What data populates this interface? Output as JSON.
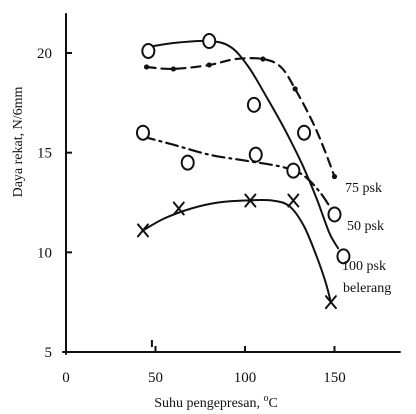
{
  "chart_data": {
    "type": "line",
    "title": "",
    "xlabel": "Suhu pengepresan, °C",
    "xlabel_base": "Suhu pengepresan, ",
    "xlabel_unit_sup": "o",
    "xlabel_unit": "C",
    "ylabel": "Daya rekat, N/6mm",
    "xlim": [
      0,
      190
    ],
    "ylim": [
      5,
      22
    ],
    "xticks": [
      0,
      50,
      100,
      150
    ],
    "yticks": [
      5,
      10,
      15,
      20
    ],
    "series": [
      {
        "name": "75 psk",
        "line_style": "dashed",
        "marker": "dot",
        "points": [
          [
            45,
            19.3
          ],
          [
            60,
            19.2
          ],
          [
            80,
            19.4
          ],
          [
            110,
            19.7
          ],
          [
            128,
            18.2
          ],
          [
            150,
            13.8
          ]
        ],
        "curve": [
          [
            45,
            19.3
          ],
          [
            60,
            19.2
          ],
          [
            80,
            19.4
          ],
          [
            95,
            19.7
          ],
          [
            110,
            19.7
          ],
          [
            120,
            19.3
          ],
          [
            128,
            18.2
          ],
          [
            138,
            16.5
          ],
          [
            145,
            15
          ],
          [
            150,
            13.8
          ]
        ]
      },
      {
        "name": "50 psk",
        "line_style": "dash-dot",
        "marker": "circle",
        "points": [
          [
            43,
            16
          ],
          [
            68,
            14.5
          ],
          [
            106,
            14.9
          ],
          [
            127,
            14.1
          ],
          [
            150,
            11.9
          ]
        ],
        "curve": [
          [
            43,
            15.8
          ],
          [
            60,
            15.4
          ],
          [
            80,
            14.9
          ],
          [
            100,
            14.6
          ],
          [
            120,
            14.3
          ],
          [
            132,
            13.9
          ],
          [
            142,
            13
          ],
          [
            150,
            11.9
          ]
        ]
      },
      {
        "name": "100 psk",
        "line_style": "solid",
        "marker": "circle",
        "points": [
          [
            46,
            20.1
          ],
          [
            80,
            20.6
          ],
          [
            105,
            17.4
          ],
          [
            133,
            16
          ],
          [
            155,
            9.8
          ]
        ],
        "curve": [
          [
            46,
            20.3
          ],
          [
            60,
            20.5
          ],
          [
            80,
            20.6
          ],
          [
            92,
            20.3
          ],
          [
            102,
            19.3
          ],
          [
            112,
            17.8
          ],
          [
            122,
            16.2
          ],
          [
            132,
            14.4
          ],
          [
            140,
            12.7
          ],
          [
            147,
            11
          ],
          [
            152,
            10.2
          ]
        ]
      },
      {
        "name": "belerang",
        "line_style": "solid",
        "marker": "cross",
        "points": [
          [
            43,
            11.1
          ],
          [
            63,
            12.2
          ],
          [
            103,
            12.6
          ],
          [
            127,
            12.6
          ],
          [
            148,
            7.5
          ]
        ],
        "curve": [
          [
            43,
            11.1
          ],
          [
            55,
            11.7
          ],
          [
            70,
            12.2
          ],
          [
            85,
            12.5
          ],
          [
            100,
            12.6
          ],
          [
            115,
            12.6
          ],
          [
            125,
            12.3
          ],
          [
            133,
            11.3
          ],
          [
            140,
            9.8
          ],
          [
            145,
            8.5
          ],
          [
            148,
            7.5
          ]
        ]
      }
    ],
    "annotations": [
      {
        "text": "75 psk",
        "series": "75 psk"
      },
      {
        "text": "50 psk",
        "series": "50 psk"
      },
      {
        "text": "100 psk",
        "series": "100 psk"
      },
      {
        "text": "belerang",
        "series": "belerang"
      }
    ]
  }
}
